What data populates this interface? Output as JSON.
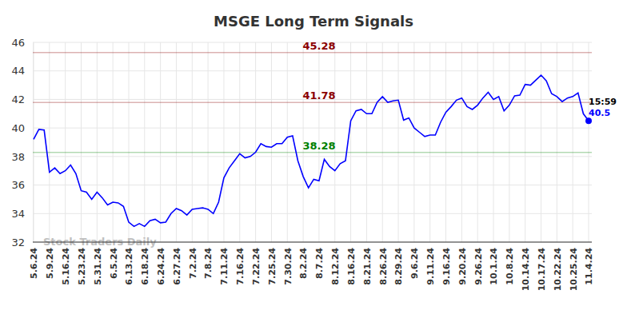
{
  "chart_data": {
    "type": "line",
    "title": "MSGE Long Term Signals",
    "categories": [
      "5.6.24",
      null,
      null,
      "5.9.24",
      null,
      null,
      "5.16.24",
      null,
      null,
      "5.23.24",
      null,
      null,
      "5.31.24",
      null,
      null,
      "6.5.24",
      null,
      null,
      "6.13.24",
      null,
      null,
      "6.18.24",
      null,
      null,
      "6.24.24",
      null,
      null,
      "6.27.24",
      null,
      null,
      "7.2.24",
      null,
      null,
      "7.8.24",
      null,
      null,
      "7.11.24",
      null,
      null,
      "7.16.24",
      null,
      null,
      "7.22.24",
      null,
      null,
      "7.25.24",
      null,
      null,
      "7.30.24",
      null,
      null,
      "8.2.24",
      null,
      null,
      "8.7.24",
      null,
      null,
      "8.12.24",
      null,
      null,
      "8.16.24",
      null,
      null,
      "8.21.24",
      null,
      null,
      "8.26.24",
      null,
      null,
      "8.29.24",
      null,
      null,
      "9.6.24",
      null,
      null,
      "9.11.24",
      null,
      null,
      "9.16.24",
      null,
      null,
      "9.20.24",
      null,
      null,
      "9.26.24",
      null,
      null,
      "10.1.24",
      null,
      null,
      "10.8.24",
      null,
      null,
      "10.14.24",
      null,
      null,
      "10.17.24",
      null,
      null,
      "10.22.24",
      null,
      null,
      "10.25.24",
      null,
      null,
      "11.4.24"
    ],
    "values": [
      39.2,
      39.9,
      39.85,
      36.9,
      37.2,
      36.8,
      37.0,
      37.4,
      36.8,
      35.6,
      35.5,
      35.0,
      35.5,
      35.1,
      34.6,
      34.8,
      34.75,
      34.5,
      33.4,
      33.1,
      33.3,
      33.1,
      33.5,
      33.6,
      33.35,
      33.4,
      34.0,
      34.35,
      34.2,
      33.9,
      34.3,
      34.35,
      34.4,
      34.3,
      34.0,
      34.8,
      36.5,
      37.2,
      37.7,
      38.2,
      37.9,
      38.0,
      38.3,
      38.9,
      38.7,
      38.65,
      38.9,
      38.9,
      39.35,
      39.45,
      37.7,
      36.6,
      35.8,
      36.4,
      36.3,
      37.8,
      37.3,
      37.0,
      37.5,
      37.7,
      40.5,
      41.2,
      41.3,
      41.0,
      41.0,
      41.8,
      42.2,
      41.8,
      41.9,
      41.95,
      40.55,
      40.7,
      40.0,
      39.7,
      39.4,
      39.5,
      39.5,
      40.4,
      41.1,
      41.5,
      41.95,
      42.1,
      41.5,
      41.3,
      41.6,
      42.1,
      42.5,
      42.0,
      42.2,
      41.2,
      41.6,
      42.25,
      42.3,
      43.05,
      43.0,
      43.35,
      43.7,
      43.3,
      42.4,
      42.2,
      41.85,
      42.1,
      42.2,
      42.45,
      41.0,
      40.5
    ],
    "color": "#0000ff",
    "ylim": [
      32,
      46
    ],
    "yticks": [
      32,
      34,
      36,
      38,
      40,
      42,
      44,
      46
    ],
    "grid": true,
    "reference_lines": [
      {
        "value": 45.28,
        "color": "#8b0000"
      },
      {
        "value": 41.78,
        "color": "#8b0000"
      },
      {
        "value": 38.28,
        "color": "#008000"
      }
    ],
    "last_time": "15:59",
    "watermark": "Stock Traders Daily"
  }
}
